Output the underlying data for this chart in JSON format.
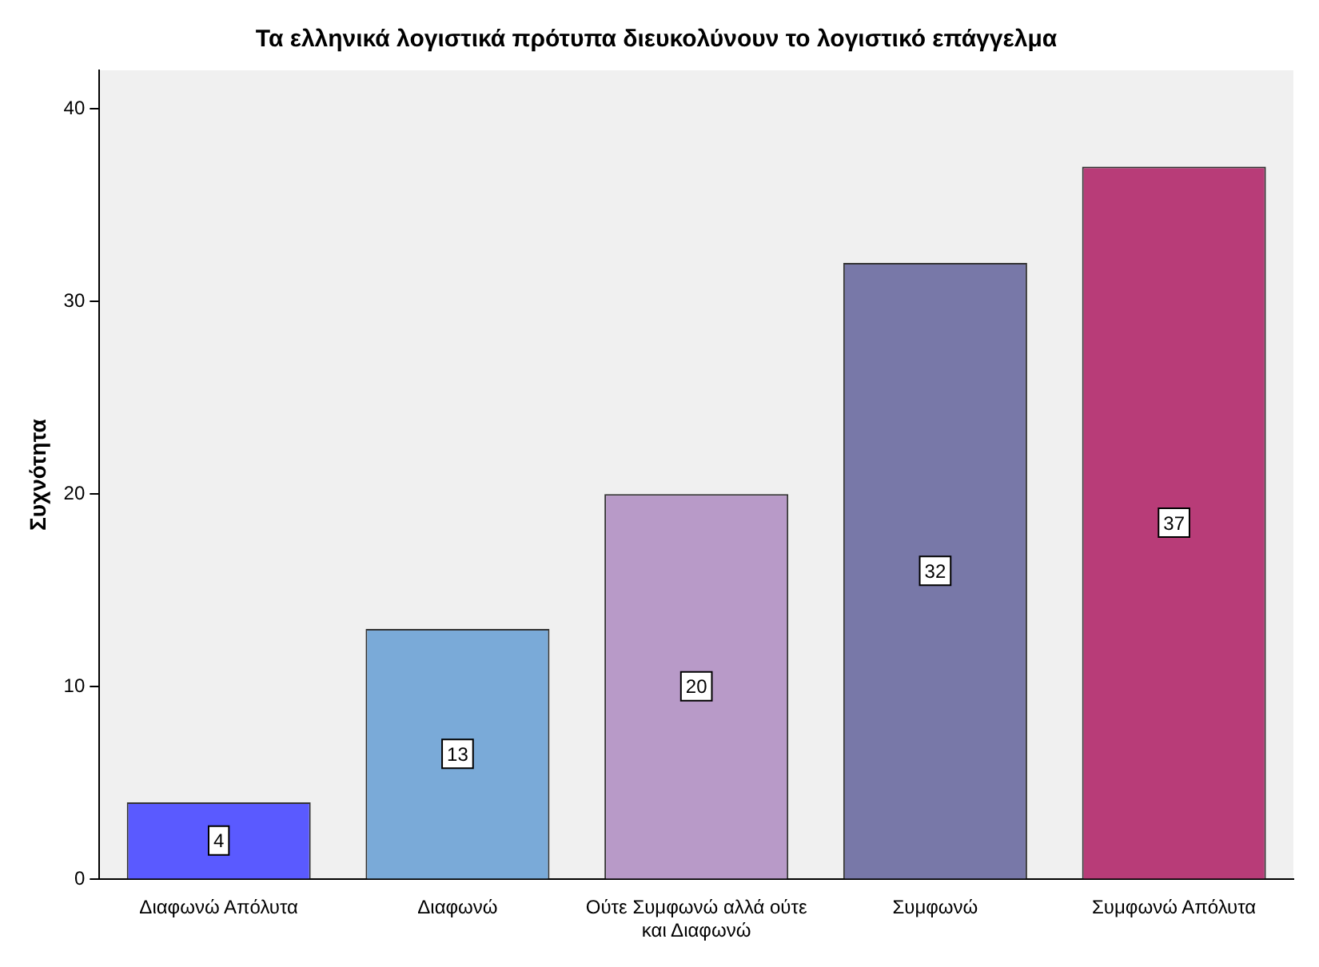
{
  "chart_data": {
    "type": "bar",
    "title": "Τα ελληνικά λογιστικά πρότυπα διευκολύνουν το λογιστικό επάγγελμα",
    "ylabel": "Συχνότητα",
    "categories": [
      "Διαφωνώ Απόλυτα",
      "Διαφωνώ",
      "Ούτε Συμφωνώ αλλά ούτε και Διαφωνώ",
      "Συμφωνώ",
      "Συμφωνώ Απόλυτα"
    ],
    "values": [
      4,
      13,
      20,
      32,
      37
    ],
    "colors": [
      "#5a5aff",
      "#7aaad8",
      "#b89ac8",
      "#7878a8",
      "#b83c78"
    ],
    "ylim": [
      0,
      42
    ],
    "yticks": [
      0,
      10,
      20,
      30,
      40
    ],
    "grid": false,
    "legend": false,
    "data_labels": true
  }
}
